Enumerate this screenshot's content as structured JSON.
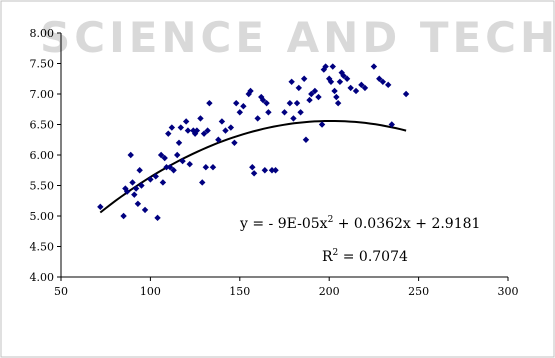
{
  "watermark": "SCIENCE AND TECH",
  "equation_line1": "y = - 9E-05x",
  "equation_line1_exp": "2",
  "equation_line1_rest": " + 0.0362x + 2.9181",
  "equation_line2": "R",
  "equation_line2_exp": "2",
  "equation_line2_rest": " = 0.7074",
  "colors": {
    "points": "#000080",
    "trend": "#000000",
    "frame": "#000000",
    "watermark": "#d9d9d9"
  },
  "chart_data": {
    "type": "scatter",
    "title": "",
    "xlabel": "",
    "ylabel": "",
    "xlim": [
      50,
      300
    ],
    "ylim": [
      4.0,
      8.0
    ],
    "xticks": [
      "50",
      "100",
      "150",
      "200",
      "250",
      "300"
    ],
    "yticks": [
      "4.00",
      "4.50",
      "5.00",
      "5.50",
      "6.00",
      "6.50",
      "7.00",
      "7.50",
      "8.00"
    ],
    "grid": false,
    "trendline": {
      "type": "polynomial",
      "a": -9e-05,
      "b": 0.0362,
      "c": 2.9181,
      "x_range": [
        72,
        243
      ]
    },
    "series": [
      {
        "points": [
          [
            72,
            5.15
          ],
          [
            85,
            5.0
          ],
          [
            86,
            5.45
          ],
          [
            87,
            5.4
          ],
          [
            89,
            6.0
          ],
          [
            90,
            5.55
          ],
          [
            91,
            5.35
          ],
          [
            92,
            5.45
          ],
          [
            93,
            5.2
          ],
          [
            94,
            5.75
          ],
          [
            95,
            5.5
          ],
          [
            97,
            5.1
          ],
          [
            100,
            5.6
          ],
          [
            103,
            5.65
          ],
          [
            104,
            4.97
          ],
          [
            106,
            6.0
          ],
          [
            107,
            5.55
          ],
          [
            108,
            5.95
          ],
          [
            109,
            5.8
          ],
          [
            110,
            6.35
          ],
          [
            111,
            5.8
          ],
          [
            112,
            6.45
          ],
          [
            113,
            5.75
          ],
          [
            115,
            6.0
          ],
          [
            116,
            6.2
          ],
          [
            117,
            6.45
          ],
          [
            118,
            5.9
          ],
          [
            120,
            6.55
          ],
          [
            121,
            6.4
          ],
          [
            122,
            5.85
          ],
          [
            124,
            6.4
          ],
          [
            125,
            6.35
          ],
          [
            126,
            6.4
          ],
          [
            128,
            6.6
          ],
          [
            129,
            5.55
          ],
          [
            130,
            6.35
          ],
          [
            131,
            5.8
          ],
          [
            132,
            6.4
          ],
          [
            133,
            6.85
          ],
          [
            135,
            5.8
          ],
          [
            138,
            6.25
          ],
          [
            140,
            6.55
          ],
          [
            142,
            6.4
          ],
          [
            145,
            6.45
          ],
          [
            147,
            6.2
          ],
          [
            148,
            6.85
          ],
          [
            150,
            6.7
          ],
          [
            152,
            6.8
          ],
          [
            155,
            7.0
          ],
          [
            156,
            7.05
          ],
          [
            157,
            5.8
          ],
          [
            158,
            5.7
          ],
          [
            160,
            6.6
          ],
          [
            162,
            6.95
          ],
          [
            163,
            6.9
          ],
          [
            164,
            5.75
          ],
          [
            165,
            6.85
          ],
          [
            166,
            6.7
          ],
          [
            168,
            5.75
          ],
          [
            170,
            5.75
          ],
          [
            175,
            6.7
          ],
          [
            178,
            6.85
          ],
          [
            179,
            7.2
          ],
          [
            180,
            6.6
          ],
          [
            182,
            6.85
          ],
          [
            183,
            7.1
          ],
          [
            184,
            6.7
          ],
          [
            186,
            7.25
          ],
          [
            187,
            6.25
          ],
          [
            189,
            6.9
          ],
          [
            190,
            7.0
          ],
          [
            192,
            7.05
          ],
          [
            194,
            6.95
          ],
          [
            196,
            6.5
          ],
          [
            197,
            7.4
          ],
          [
            198,
            7.45
          ],
          [
            200,
            7.25
          ],
          [
            201,
            7.2
          ],
          [
            202,
            7.45
          ],
          [
            203,
            7.05
          ],
          [
            204,
            6.95
          ],
          [
            205,
            6.85
          ],
          [
            206,
            7.2
          ],
          [
            207,
            7.35
          ],
          [
            208,
            7.3
          ],
          [
            210,
            7.25
          ],
          [
            212,
            7.1
          ],
          [
            215,
            7.05
          ],
          [
            218,
            7.15
          ],
          [
            220,
            7.1
          ],
          [
            225,
            7.45
          ],
          [
            228,
            7.25
          ],
          [
            230,
            7.2
          ],
          [
            233,
            7.15
          ],
          [
            235,
            6.5
          ],
          [
            243,
            7.0
          ]
        ]
      }
    ]
  }
}
